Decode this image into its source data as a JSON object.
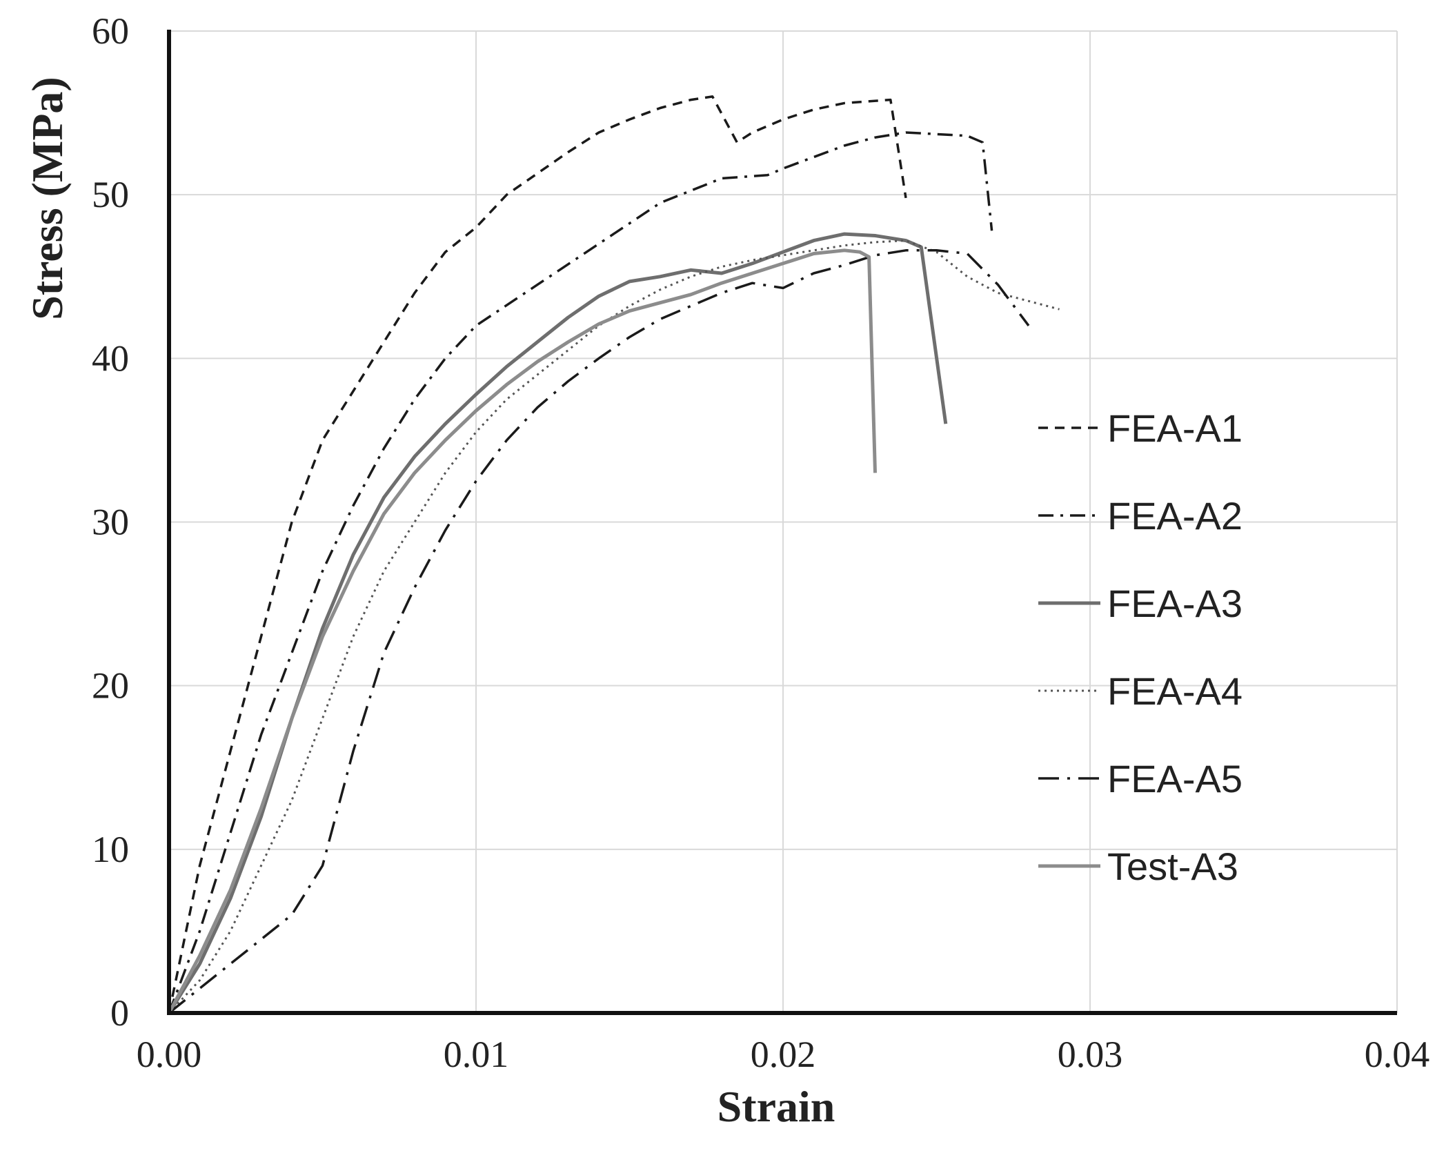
{
  "chart_data": {
    "type": "line",
    "title": "",
    "xlabel": "Strain",
    "ylabel": "Stress (MPa)",
    "xlim": [
      0,
      0.04
    ],
    "ylim": [
      0,
      60
    ],
    "xticks": [
      0,
      0.01,
      0.02,
      0.03,
      0.04
    ],
    "xtick_labels": [
      "0.00",
      "0.01",
      "0.02",
      "0.03",
      "0.04"
    ],
    "yticks": [
      0,
      10,
      20,
      30,
      40,
      50,
      60
    ],
    "ytick_labels": [
      "0",
      "10",
      "20",
      "30",
      "40",
      "50",
      "60"
    ],
    "grid": true,
    "legend_position": "right",
    "series": [
      {
        "name": "FEA-A1",
        "color": "#1a1a1a",
        "dash": "dashed",
        "points": [
          [
            0,
            0
          ],
          [
            0.001,
            9
          ],
          [
            0.002,
            16
          ],
          [
            0.003,
            23
          ],
          [
            0.004,
            30
          ],
          [
            0.005,
            35
          ],
          [
            0.006,
            38
          ],
          [
            0.007,
            41
          ],
          [
            0.008,
            44
          ],
          [
            0.009,
            46.5
          ],
          [
            0.01,
            48
          ],
          [
            0.011,
            50
          ],
          [
            0.012,
            51.3
          ],
          [
            0.013,
            52.6
          ],
          [
            0.014,
            53.8
          ],
          [
            0.015,
            54.6
          ],
          [
            0.016,
            55.3
          ],
          [
            0.017,
            55.8
          ],
          [
            0.0177,
            56.0
          ],
          [
            0.0185,
            53.2
          ],
          [
            0.019,
            53.8
          ],
          [
            0.02,
            54.6
          ],
          [
            0.021,
            55.2
          ],
          [
            0.022,
            55.6
          ],
          [
            0.0235,
            55.8
          ],
          [
            0.024,
            49.8
          ]
        ]
      },
      {
        "name": "FEA-A2",
        "color": "#1a1a1a",
        "dash": "dashdot",
        "points": [
          [
            0,
            0
          ],
          [
            0.001,
            5
          ],
          [
            0.002,
            11
          ],
          [
            0.003,
            17
          ],
          [
            0.004,
            22
          ],
          [
            0.005,
            27
          ],
          [
            0.006,
            31
          ],
          [
            0.007,
            34.5
          ],
          [
            0.008,
            37.5
          ],
          [
            0.009,
            40
          ],
          [
            0.01,
            42
          ],
          [
            0.012,
            44.5
          ],
          [
            0.014,
            47
          ],
          [
            0.016,
            49.5
          ],
          [
            0.018,
            51
          ],
          [
            0.0195,
            51.2
          ],
          [
            0.02,
            51.6
          ],
          [
            0.021,
            52.3
          ],
          [
            0.022,
            53
          ],
          [
            0.023,
            53.5
          ],
          [
            0.024,
            53.8
          ],
          [
            0.025,
            53.7
          ],
          [
            0.026,
            53.6
          ],
          [
            0.0265,
            53.2
          ],
          [
            0.0268,
            47.8
          ]
        ]
      },
      {
        "name": "FEA-A3",
        "color": "#6e6e6e",
        "dash": "solid",
        "points": [
          [
            0,
            0
          ],
          [
            0.001,
            3
          ],
          [
            0.002,
            7
          ],
          [
            0.003,
            12
          ],
          [
            0.004,
            18
          ],
          [
            0.005,
            23.5
          ],
          [
            0.006,
            28
          ],
          [
            0.007,
            31.5
          ],
          [
            0.008,
            34
          ],
          [
            0.009,
            36
          ],
          [
            0.01,
            37.8
          ],
          [
            0.011,
            39.5
          ],
          [
            0.012,
            41
          ],
          [
            0.013,
            42.5
          ],
          [
            0.014,
            43.8
          ],
          [
            0.015,
            44.7
          ],
          [
            0.016,
            45
          ],
          [
            0.017,
            45.4
          ],
          [
            0.018,
            45.2
          ],
          [
            0.019,
            45.8
          ],
          [
            0.02,
            46.5
          ],
          [
            0.021,
            47.2
          ],
          [
            0.022,
            47.6
          ],
          [
            0.023,
            47.5
          ],
          [
            0.024,
            47.2
          ],
          [
            0.0245,
            46.8
          ],
          [
            0.0253,
            36
          ]
        ]
      },
      {
        "name": "FEA-A4",
        "color": "#555555",
        "dash": "dotted",
        "points": [
          [
            0,
            0
          ],
          [
            0.001,
            2
          ],
          [
            0.002,
            5
          ],
          [
            0.003,
            9
          ],
          [
            0.004,
            13
          ],
          [
            0.005,
            18
          ],
          [
            0.006,
            23
          ],
          [
            0.007,
            27
          ],
          [
            0.008,
            30
          ],
          [
            0.009,
            33
          ],
          [
            0.01,
            35.5
          ],
          [
            0.011,
            37.5
          ],
          [
            0.012,
            39
          ],
          [
            0.013,
            40.5
          ],
          [
            0.014,
            42
          ],
          [
            0.015,
            43.2
          ],
          [
            0.016,
            44.2
          ],
          [
            0.017,
            45
          ],
          [
            0.018,
            45.6
          ],
          [
            0.019,
            46
          ],
          [
            0.02,
            46.3
          ],
          [
            0.021,
            46.6
          ],
          [
            0.022,
            46.9
          ],
          [
            0.023,
            47.1
          ],
          [
            0.024,
            47.2
          ],
          [
            0.025,
            46.5
          ],
          [
            0.026,
            45
          ],
          [
            0.027,
            44
          ],
          [
            0.028,
            43.5
          ],
          [
            0.029,
            43
          ]
        ]
      },
      {
        "name": "FEA-A5",
        "color": "#1a1a1a",
        "dash": "longdashdot",
        "points": [
          [
            0,
            0
          ],
          [
            0.001,
            1.5
          ],
          [
            0.002,
            3
          ],
          [
            0.003,
            4.5
          ],
          [
            0.004,
            6
          ],
          [
            0.005,
            9
          ],
          [
            0.006,
            16
          ],
          [
            0.007,
            22
          ],
          [
            0.008,
            26
          ],
          [
            0.009,
            29.5
          ],
          [
            0.01,
            32.5
          ],
          [
            0.011,
            35
          ],
          [
            0.012,
            37
          ],
          [
            0.013,
            38.6
          ],
          [
            0.014,
            40
          ],
          [
            0.015,
            41.3
          ],
          [
            0.016,
            42.4
          ],
          [
            0.017,
            43.2
          ],
          [
            0.018,
            44
          ],
          [
            0.019,
            44.6
          ],
          [
            0.02,
            44.3
          ],
          [
            0.021,
            45.2
          ],
          [
            0.022,
            45.7
          ],
          [
            0.023,
            46.3
          ],
          [
            0.024,
            46.6
          ],
          [
            0.025,
            46.6
          ],
          [
            0.026,
            46.4
          ],
          [
            0.027,
            44.5
          ],
          [
            0.028,
            42
          ]
        ]
      },
      {
        "name": "Test-A3",
        "color": "#8c8c8c",
        "dash": "solid",
        "points": [
          [
            0,
            0
          ],
          [
            0.001,
            3.5
          ],
          [
            0.002,
            7.5
          ],
          [
            0.003,
            12.5
          ],
          [
            0.004,
            18
          ],
          [
            0.005,
            23
          ],
          [
            0.006,
            27
          ],
          [
            0.007,
            30.5
          ],
          [
            0.008,
            33
          ],
          [
            0.009,
            35
          ],
          [
            0.01,
            36.8
          ],
          [
            0.011,
            38.4
          ],
          [
            0.012,
            39.8
          ],
          [
            0.013,
            41
          ],
          [
            0.014,
            42.1
          ],
          [
            0.015,
            42.9
          ],
          [
            0.016,
            43.4
          ],
          [
            0.017,
            43.9
          ],
          [
            0.018,
            44.6
          ],
          [
            0.019,
            45.2
          ],
          [
            0.02,
            45.8
          ],
          [
            0.021,
            46.4
          ],
          [
            0.022,
            46.6
          ],
          [
            0.0225,
            46.5
          ],
          [
            0.0228,
            46.2
          ],
          [
            0.023,
            33
          ]
        ]
      }
    ]
  }
}
